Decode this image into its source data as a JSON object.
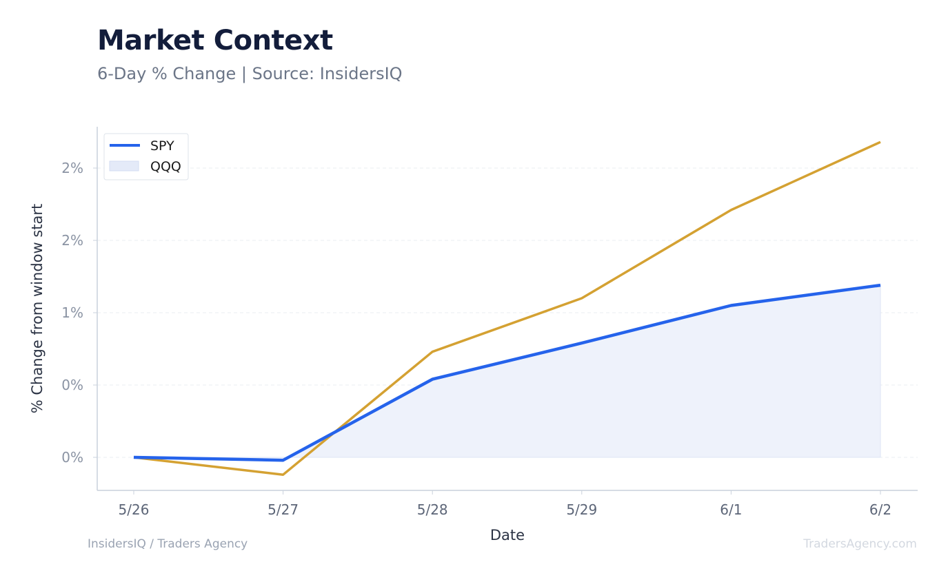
{
  "header": {
    "title": "Market Context",
    "subtitle": "6-Day % Change | Source: InsidersIQ"
  },
  "footer": {
    "left": "InsidersIQ / Traders Agency",
    "right": "TradersAgency.com"
  },
  "chart_data": {
    "type": "line",
    "xlabel": "Date",
    "ylabel": "% Change from window start",
    "categories": [
      "5/26",
      "5/27",
      "5/28",
      "5/29",
      "6/1",
      "6/2"
    ],
    "ylim": [
      -0.25,
      2.25
    ],
    "yticks": [
      {
        "value": 0.0,
        "label": "0%"
      },
      {
        "value": 0.5,
        "label": "0%"
      },
      {
        "value": 1.0,
        "label": "1%"
      },
      {
        "value": 1.5,
        "label": "2%"
      },
      {
        "value": 2.0,
        "label": "2%"
      }
    ],
    "grid": true,
    "legend_position": "top-left",
    "series": [
      {
        "name": "SPY",
        "values": [
          0.0,
          -0.02,
          0.54,
          0.79,
          1.05,
          1.19
        ],
        "color": "#2563eb",
        "fill": true
      },
      {
        "name": "QQQ",
        "values": [
          0.0,
          -0.12,
          0.73,
          1.1,
          1.71,
          2.18
        ],
        "color": "#d4a132",
        "fill": false
      }
    ],
    "colors": {
      "area_fill": "#eef2fb",
      "legend_swatch_fill": "#e4eaf8",
      "grid": "#e8ecf1",
      "axis": "#c9d1dc"
    }
  }
}
